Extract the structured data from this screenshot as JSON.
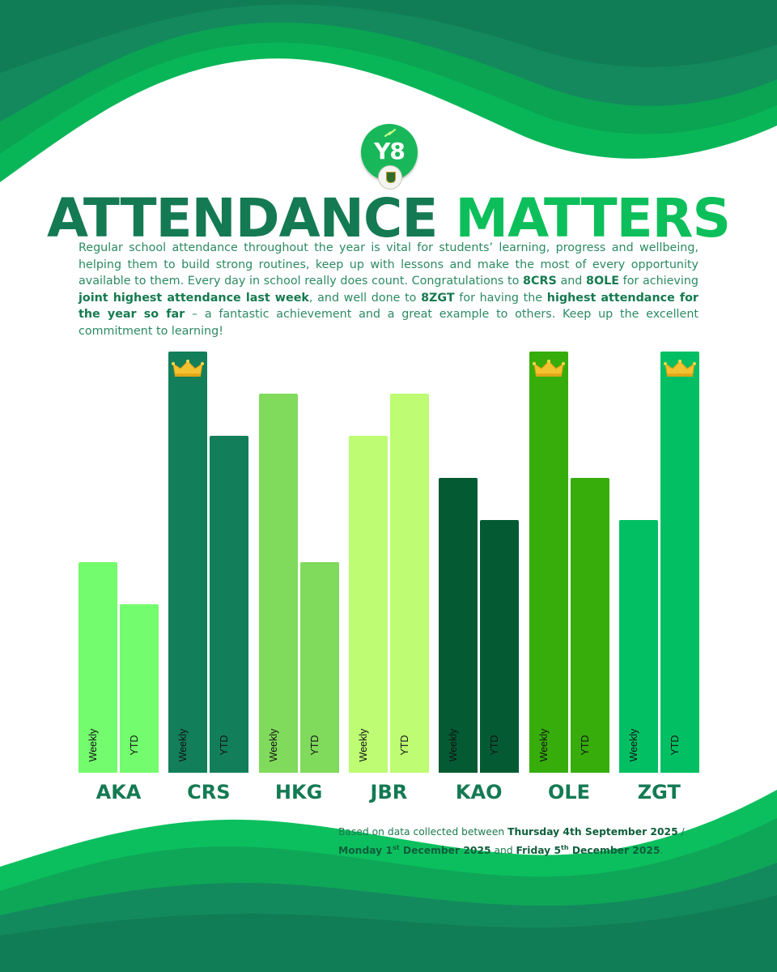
{
  "logo": {
    "badge_text": "Y8",
    "crest_name": "school-crest"
  },
  "header": {
    "title_part1": "ATTENDANCE",
    "title_part2": "MATTERS"
  },
  "intro": {
    "t1": "Regular school attendance throughout the year is vital for students’ learning, progress and wellbeing, helping them to build strong routines, keep up with lessons and make the most of every opportunity available to them. Every day in school really does count. Congratulations to ",
    "b1": "8CRS",
    "t2": " and ",
    "b2": "8OLE",
    "t3": " for achieving ",
    "b3": "joint highest attendance last week",
    "t4": ", and well done to ",
    "b4": "8ZGT",
    "t5": " for having the ",
    "b5": "highest attendance for the year so far",
    "t6": " – a fantastic achievement and a great example to others. Keep up the excellent commitment to learning!"
  },
  "chart_data": {
    "type": "bar",
    "title": "ATTENDANCE MATTERS",
    "categories": [
      "AKA",
      "CRS",
      "HKG",
      "JBR",
      "KAO",
      "OLE",
      "ZGT"
    ],
    "series": [
      {
        "name": "Weekly",
        "values": [
          5,
          10,
          9,
          8,
          7,
          10,
          6
        ]
      },
      {
        "name": "YTD",
        "values": [
          4,
          8,
          5,
          9,
          6,
          7,
          10
        ]
      }
    ],
    "bar_colors": [
      [
        "#73fc6d",
        "#73fc6d"
      ],
      [
        "#137f5a",
        "#137f5a"
      ],
      [
        "#80da5c",
        "#80da5c"
      ],
      [
        "#bdfc73",
        "#bdfc73"
      ],
      [
        "#045b33",
        "#045b33"
      ],
      [
        "#37ad0c",
        "#37ad0c"
      ],
      [
        "#03bf63",
        "#03bf63"
      ]
    ],
    "label_colors": [
      [
        "#111111",
        "#111111"
      ],
      [
        "#111111",
        "#111111"
      ],
      [
        "#111111",
        "#111111"
      ],
      [
        "#111111",
        "#111111"
      ],
      [
        "#111111",
        "#111111"
      ],
      [
        "#111111",
        "#111111"
      ],
      [
        "#111111",
        "#111111"
      ]
    ],
    "crowns": [
      {
        "category": "CRS",
        "series": "Weekly"
      },
      {
        "category": "OLE",
        "series": "Weekly"
      },
      {
        "category": "ZGT",
        "series": "YTD"
      }
    ],
    "crown_icon": "crown-icon",
    "ylim": [
      0,
      10
    ],
    "xlabel": "",
    "ylabel": "",
    "legend": "none",
    "grid": false
  },
  "footnote": {
    "t1": "Based on data collected between ",
    "b1": "Thursday 4th September 2025",
    "t2": " / ",
    "b2a": "Monday 1",
    "sup1": "st",
    "b2b": " December 2025",
    "t3": " and ",
    "b3a": "Friday 5",
    "sup2": "th",
    "b3b": " December 2025",
    "t4": "."
  },
  "colors": {
    "dark_green": "#147a53",
    "bright_green": "#0cbf5a",
    "mid_green": "#0aa855",
    "crown_gold": "#f2c230"
  }
}
